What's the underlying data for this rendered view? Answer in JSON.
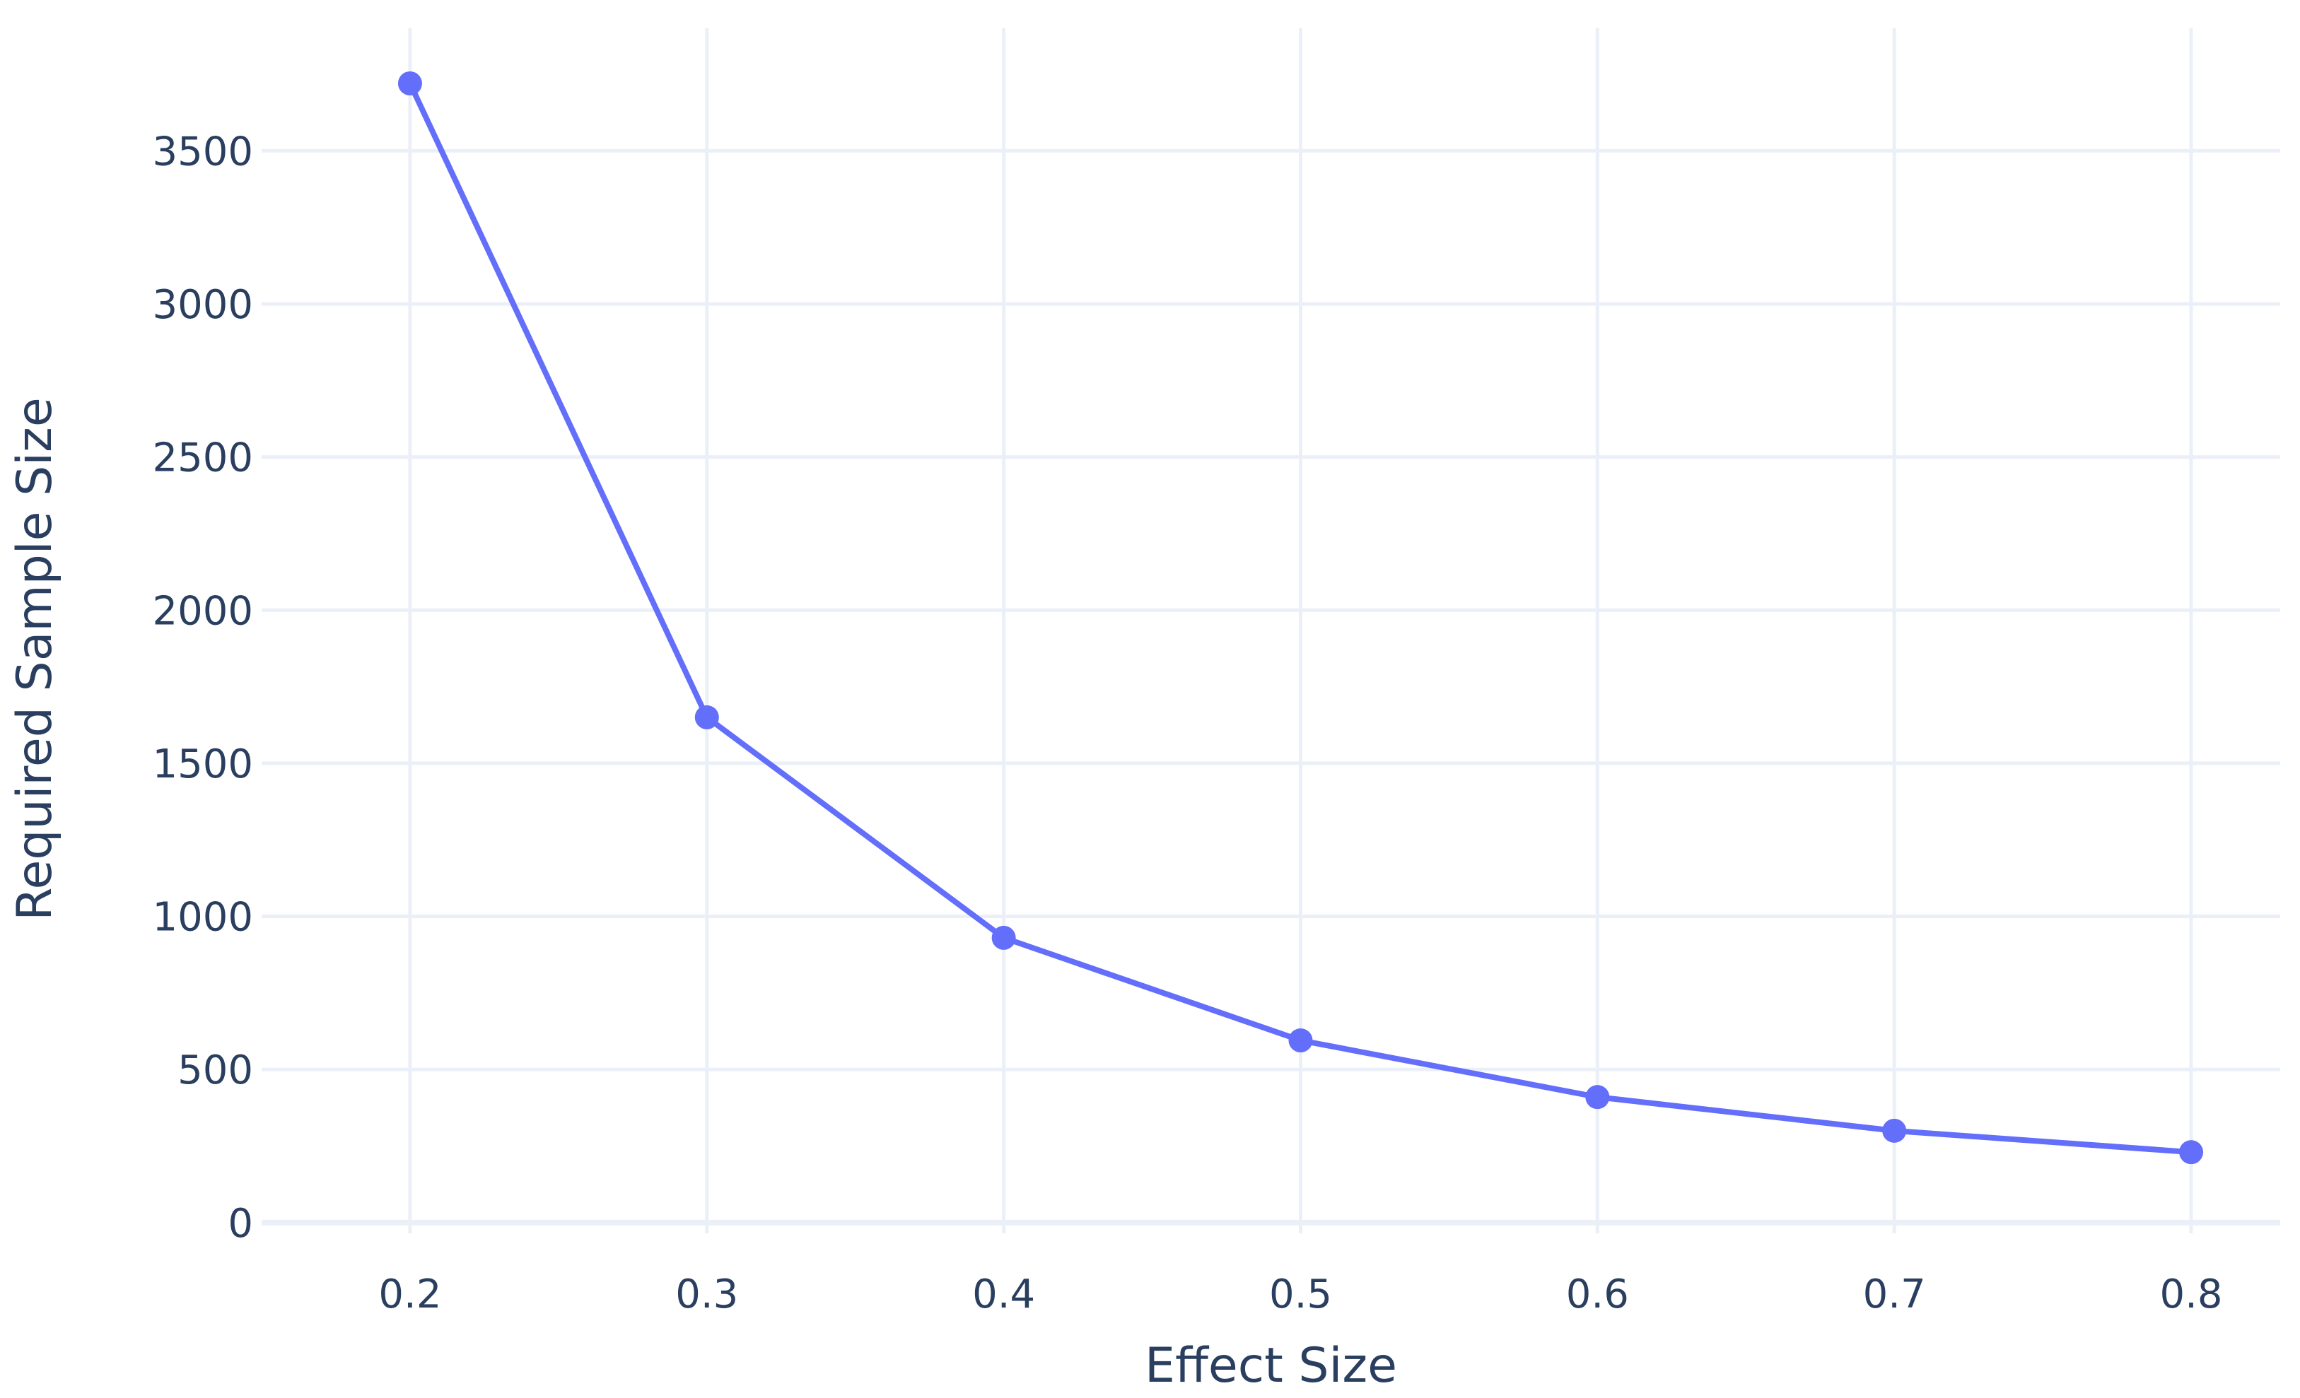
{
  "chart_data": {
    "type": "line",
    "title": "",
    "xlabel": "Effect Size",
    "ylabel": "Required Sample Size",
    "xlim": [
      0.15,
      0.83
    ],
    "ylim": [
      -35,
      3900
    ],
    "x_ticks": [
      0.2,
      0.3,
      0.4,
      0.5,
      0.6,
      0.7,
      0.8
    ],
    "x_tick_labels": [
      "0.2",
      "0.3",
      "0.4",
      "0.5",
      "0.6",
      "0.7",
      "0.8"
    ],
    "y_ticks": [
      0,
      500,
      1000,
      1500,
      2000,
      2500,
      3000,
      3500
    ],
    "y_tick_labels": [
      "0",
      "500",
      "1000",
      "1500",
      "2000",
      "2500",
      "3000",
      "3500"
    ],
    "grid": true,
    "legend": "none",
    "series": [
      {
        "color": "#636efa",
        "mode": "lines+markers",
        "x": [
          0.2,
          0.3,
          0.4,
          0.5,
          0.6,
          0.7,
          0.8
        ],
        "y": [
          3720,
          1650,
          930,
          595,
          410,
          300,
          230
        ]
      }
    ]
  }
}
